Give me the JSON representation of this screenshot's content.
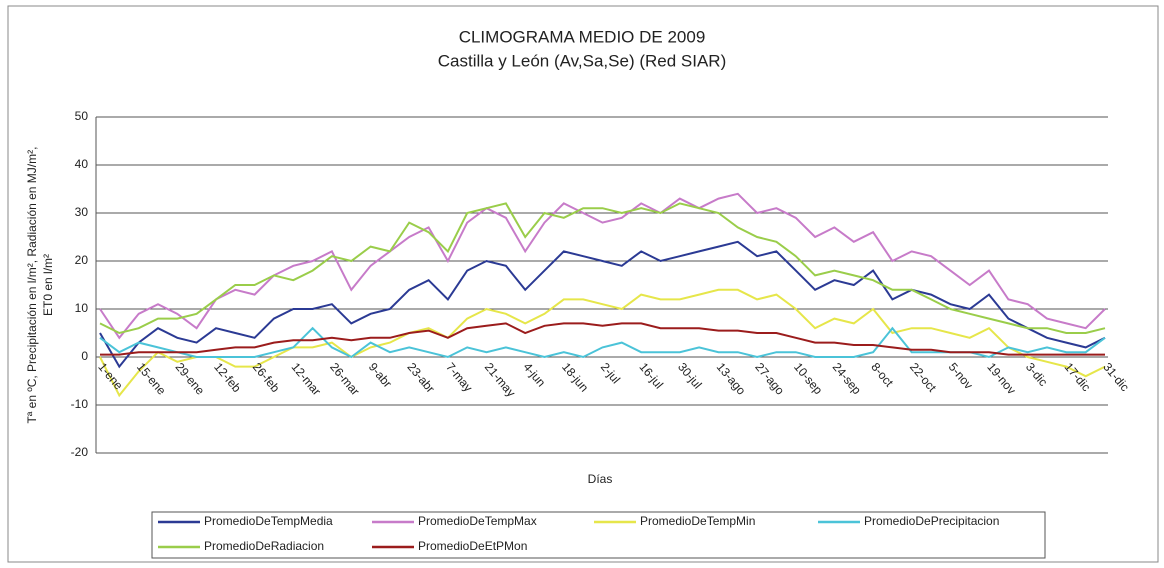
{
  "chart_data": {
    "type": "line",
    "title": "CLIMOGRAMA MEDIO DE 2009",
    "subtitle": "Castilla y León (Av,Sa,Se) (Red SIAR)",
    "xlabel": "Días",
    "ylabel": [
      "Tª en ºC, Precipitación en l/m², Radiación en MJ/m²,",
      "ET0 en l/m²"
    ],
    "categories": [
      "1-ene",
      null,
      "15-ene",
      null,
      "29-ene",
      null,
      "12-feb",
      null,
      "26-feb",
      null,
      "12-mar",
      null,
      "26-mar",
      null,
      "9-abr",
      null,
      "23-abr",
      null,
      "7-may",
      null,
      "21-may",
      null,
      "4-jun",
      null,
      "18-jun",
      null,
      "2-jul",
      null,
      "16-jul",
      null,
      "30-jul",
      null,
      "13-ago",
      null,
      "27-ago",
      null,
      "10-sep",
      null,
      "24-sep",
      null,
      "8-oct",
      null,
      "22-oct",
      null,
      "5-nov",
      null,
      "19-nov",
      null,
      "3-dic",
      null,
      "17-dic",
      null,
      "31-dic"
    ],
    "ylim": [
      -20,
      50
    ],
    "yticks": [
      -20,
      -10,
      0,
      10,
      20,
      30,
      40,
      50
    ],
    "grid": true,
    "legend": "bottom",
    "series": [
      {
        "name": "PromedioDeTempMedia",
        "color": "#2b3a94",
        "values": [
          5,
          -2,
          3,
          6,
          4,
          3,
          6,
          5,
          4,
          8,
          10,
          10,
          11,
          7,
          9,
          10,
          14,
          16,
          12,
          18,
          20,
          19,
          14,
          18,
          22,
          21,
          20,
          19,
          22,
          20,
          21,
          22,
          23,
          24,
          21,
          22,
          18,
          14,
          16,
          15,
          18,
          12,
          14,
          13,
          11,
          10,
          13,
          8,
          6,
          4,
          3,
          2,
          4
        ]
      },
      {
        "name": "PromedioDeTempMax",
        "color": "#c77bc9",
        "values": [
          10,
          4,
          9,
          11,
          9,
          6,
          12,
          14,
          13,
          17,
          19,
          20,
          22,
          14,
          19,
          22,
          25,
          27,
          20,
          28,
          31,
          29,
          22,
          28,
          32,
          30,
          28,
          29,
          32,
          30,
          33,
          31,
          33,
          34,
          30,
          31,
          29,
          25,
          27,
          24,
          26,
          20,
          22,
          21,
          18,
          15,
          18,
          12,
          11,
          8,
          7,
          6,
          10
        ]
      },
      {
        "name": "PromedioDeTempMin",
        "color": "#e6e64a",
        "values": [
          0,
          -8,
          -3,
          1,
          -1,
          0,
          0,
          -2,
          -2,
          0,
          2,
          2,
          3,
          0,
          2,
          3,
          5,
          6,
          4,
          8,
          10,
          9,
          7,
          9,
          12,
          12,
          11,
          10,
          13,
          12,
          12,
          13,
          14,
          14,
          12,
          13,
          10,
          6,
          8,
          7,
          10,
          5,
          6,
          6,
          5,
          4,
          6,
          2,
          0,
          -1,
          -2,
          -4,
          -2
        ]
      },
      {
        "name": "PromedioDePrecipitacion",
        "color": "#4bc3d8",
        "values": [
          4,
          1,
          3,
          2,
          1,
          0,
          0,
          0,
          0,
          1,
          2,
          6,
          2,
          0,
          3,
          1,
          2,
          1,
          0,
          2,
          1,
          2,
          1,
          0,
          1,
          0,
          2,
          3,
          1,
          1,
          1,
          2,
          1,
          1,
          0,
          1,
          1,
          0,
          0,
          0,
          1,
          6,
          1,
          1,
          1,
          1,
          0,
          2,
          1,
          2,
          1,
          1,
          4
        ]
      },
      {
        "name": "PromedioDeRadiacion",
        "color": "#9acd4a",
        "values": [
          7,
          5,
          6,
          8,
          8,
          9,
          12,
          15,
          15,
          17,
          16,
          18,
          21,
          20,
          23,
          22,
          28,
          26,
          22,
          30,
          31,
          32,
          25,
          30,
          29,
          31,
          31,
          30,
          31,
          30,
          32,
          31,
          30,
          27,
          25,
          24,
          21,
          17,
          18,
          17,
          16,
          14,
          14,
          12,
          10,
          9,
          8,
          7,
          6,
          6,
          5,
          5,
          6
        ]
      },
      {
        "name": "PromedioDeEtPMon",
        "color": "#9b1c1c",
        "values": [
          0.5,
          0.5,
          1,
          1,
          1,
          1,
          1.5,
          2,
          2,
          3,
          3.5,
          3.5,
          4,
          3.5,
          4,
          4,
          5,
          5.5,
          4,
          6,
          6.5,
          7,
          5,
          6.5,
          7,
          7,
          6.5,
          7,
          7,
          6,
          6,
          6,
          5.5,
          5.5,
          5,
          5,
          4,
          3,
          3,
          2.5,
          2.5,
          2,
          1.5,
          1.5,
          1,
          1,
          1,
          0.5,
          0.5,
          0.5,
          0.5,
          0.5,
          0.5
        ]
      }
    ]
  }
}
